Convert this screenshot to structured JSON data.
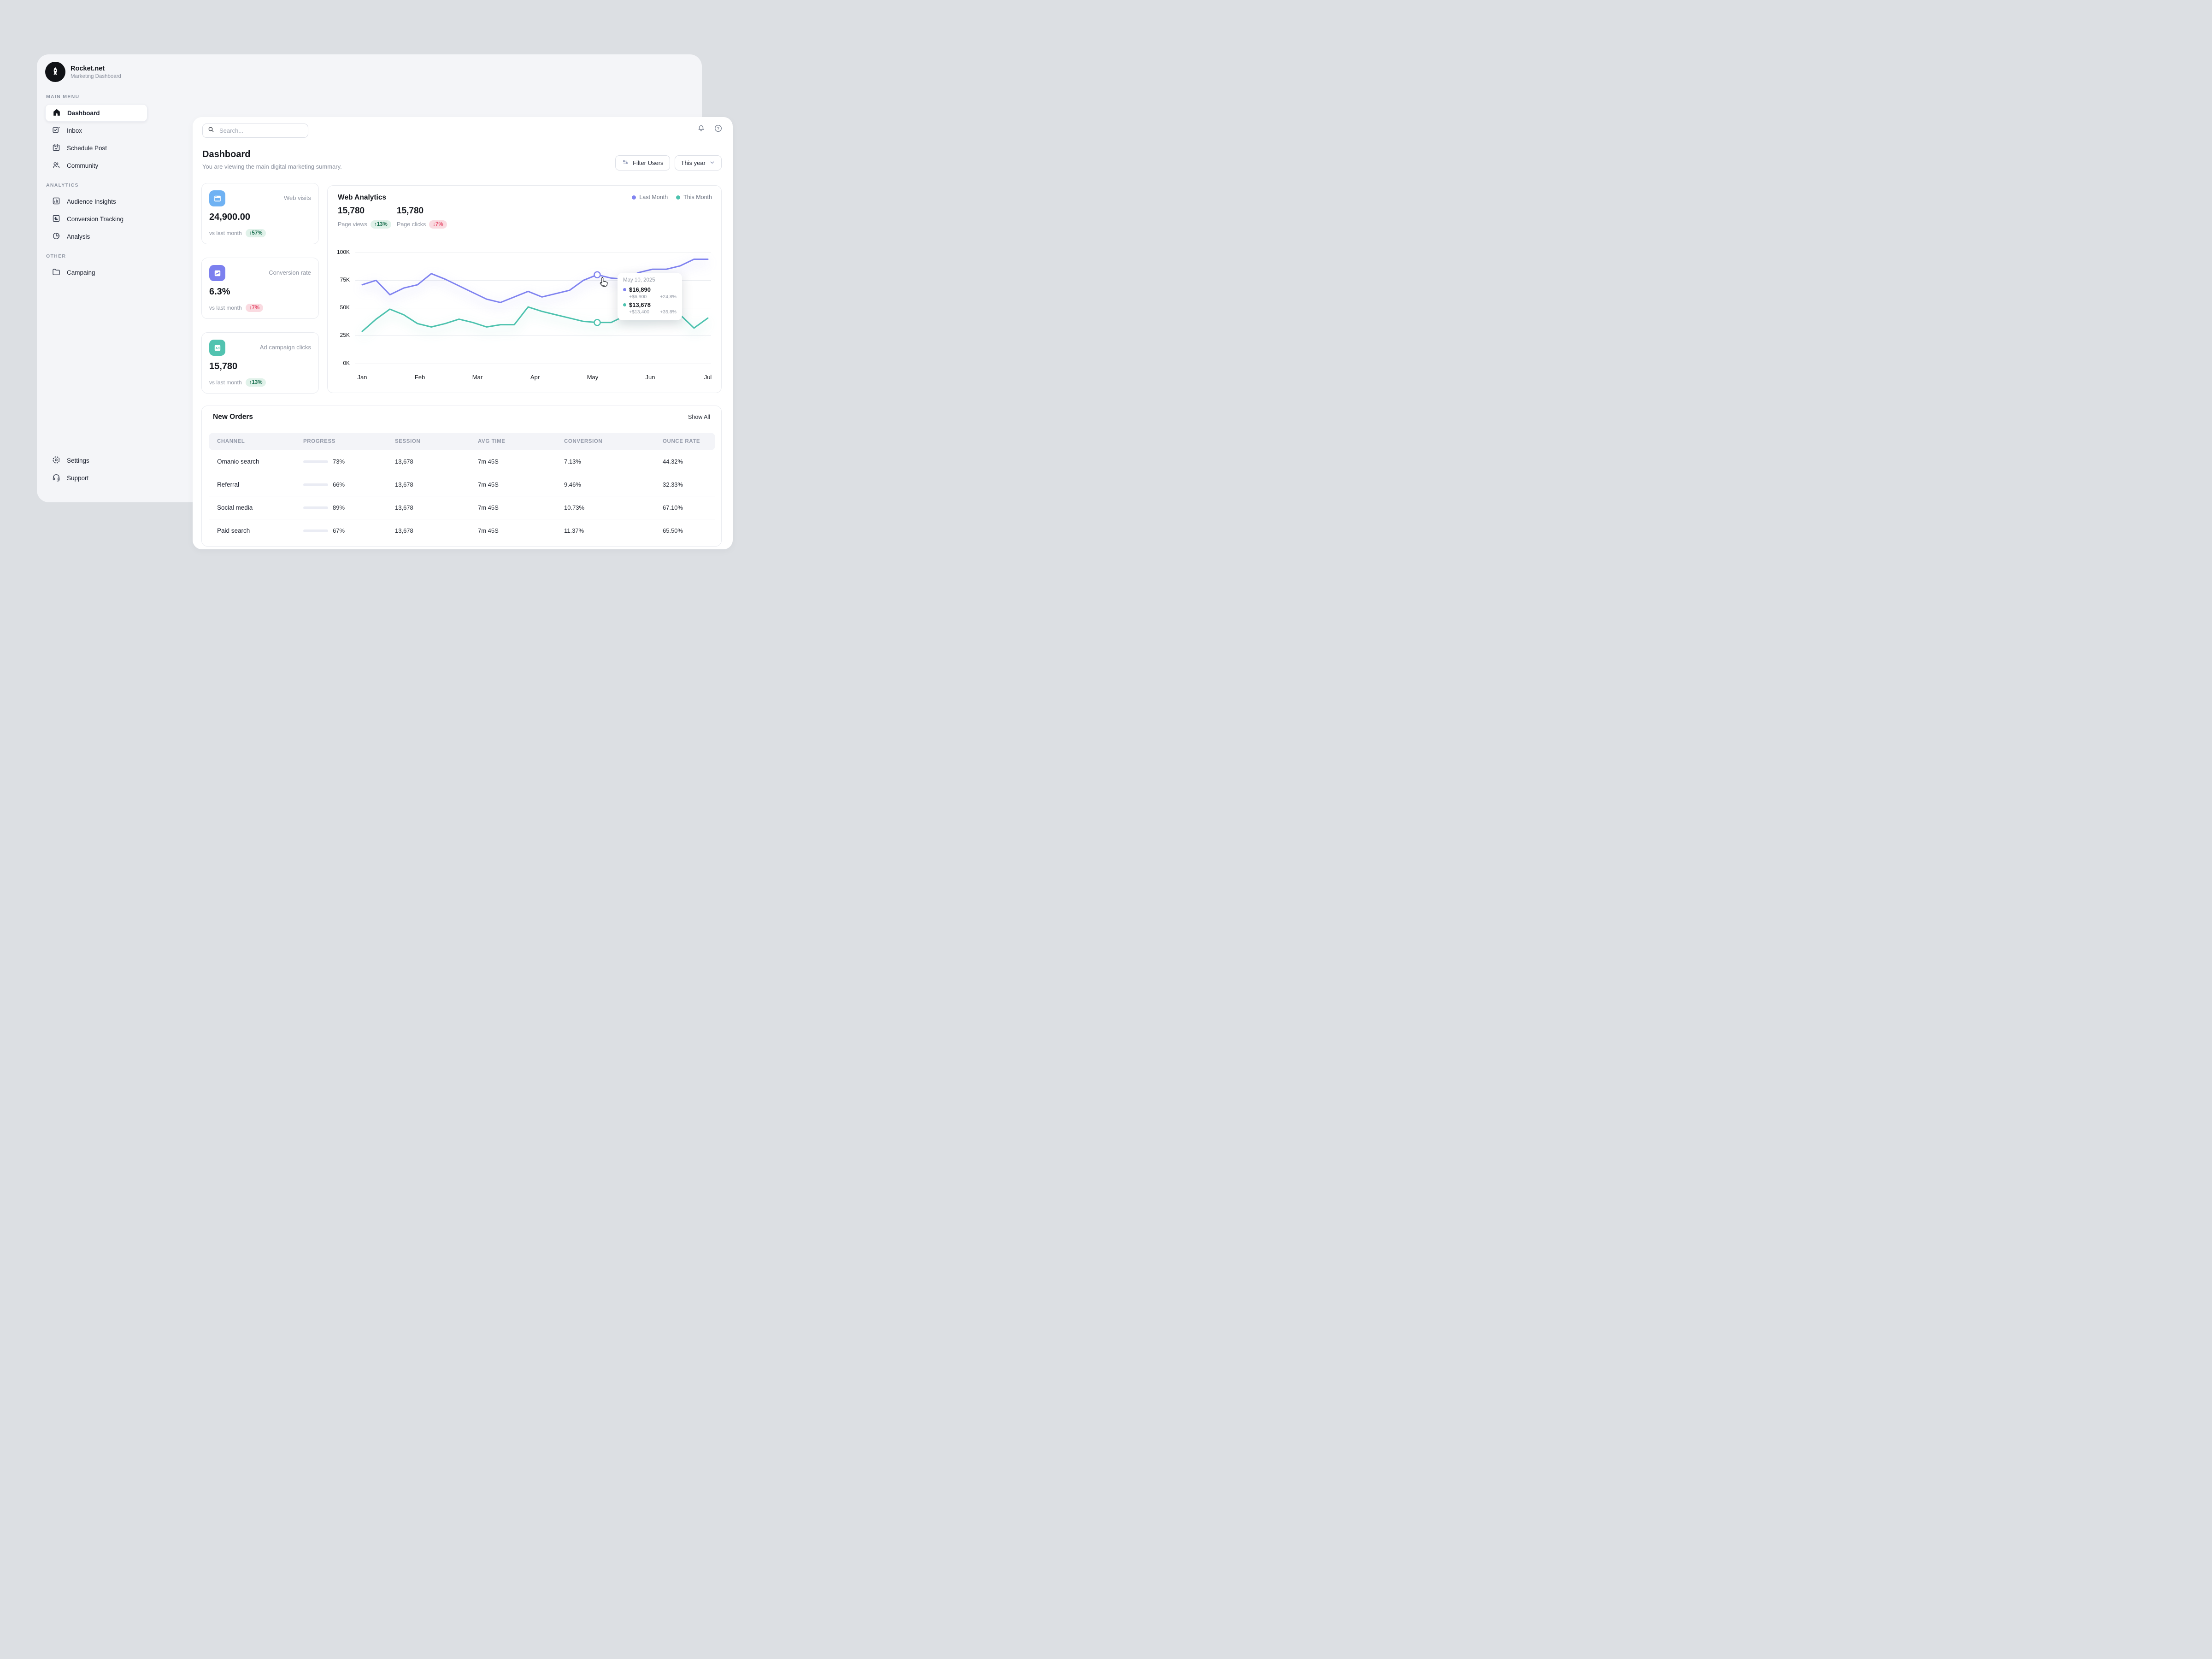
{
  "brand": {
    "name": "Rocket.net",
    "subtitle": "Marketing Dashboard"
  },
  "sidebar": {
    "sections": [
      {
        "label": "MAIN MENU",
        "items": [
          {
            "label": "Dashboard",
            "icon": "home-icon",
            "active": true
          },
          {
            "label": "Inbox",
            "icon": "inbox-icon"
          },
          {
            "label": "Schedule Post",
            "icon": "calendar-check-icon"
          },
          {
            "label": "Community",
            "icon": "community-icon"
          }
        ]
      },
      {
        "label": "ANALYTICS",
        "items": [
          {
            "label": "Audience Insights",
            "icon": "bar-chart-icon"
          },
          {
            "label": "Conversion Tracking",
            "icon": "pie-square-icon"
          },
          {
            "label": "Analysis",
            "icon": "pie-chart-icon"
          }
        ]
      },
      {
        "label": "OTHER",
        "items": [
          {
            "label": "Campaing",
            "icon": "folder-icon"
          }
        ]
      }
    ],
    "footer": [
      {
        "label": "Settings",
        "icon": "gear-icon"
      },
      {
        "label": "Support",
        "icon": "headphones-icon"
      }
    ]
  },
  "topbar": {
    "search_placeholder": "Search...",
    "help_glyph": "?"
  },
  "page": {
    "title": "Dashboard",
    "subtitle": "You are viewing the main digital marketing summary.",
    "filter_label": "Filter Users",
    "period_label": "This year"
  },
  "stat_cards": [
    {
      "label": "Web visits",
      "value": "24,900.00",
      "compare_label": "vs last month",
      "delta": "↑57%",
      "direction": "up",
      "icon": "browser-icon",
      "icon_bg": "#6FB2F3"
    },
    {
      "label": "Conversion rate",
      "value": "6.3%",
      "compare_label": "vs last month",
      "delta": "↓7%",
      "direction": "down",
      "icon": "trend-up-icon",
      "icon_bg": "#7C80EF"
    },
    {
      "label": "Ad campaign clicks",
      "value": "15,780",
      "compare_label": "vs last month",
      "delta": "↑13%",
      "direction": "up",
      "icon": "ad-icon",
      "icon_bg": "#52C3B0",
      "icon_text": "Ad"
    }
  ],
  "analytics": {
    "title": "Web Analytics",
    "stats": [
      {
        "value": "15,780",
        "label": "Page views",
        "delta": "↑13%",
        "direction": "up"
      },
      {
        "value": "15,780",
        "label": "Page clicks",
        "delta": "↓7%",
        "direction": "down"
      }
    ],
    "legend": [
      {
        "label": "Last Month",
        "color": "#8184F0"
      },
      {
        "label": "This Month",
        "color": "#4DC2AE"
      }
    ]
  },
  "chart_data": {
    "type": "line",
    "title": "Web Analytics",
    "x_axis_labels": [
      "Jan",
      "Feb",
      "Mar",
      "Apr",
      "May",
      "Jun",
      "Jul"
    ],
    "y_axis_labels": [
      "100K",
      "75K",
      "50K",
      "25K",
      "0K"
    ],
    "ylim": [
      0,
      100
    ],
    "unit": "K",
    "grid": "horizontal",
    "legend_position": "top-right",
    "series": [
      {
        "name": "Last Month",
        "color": "#8184F0",
        "values": [
          71,
          75,
          62,
          68,
          71,
          81,
          76,
          70,
          64,
          58,
          55,
          60,
          65,
          60,
          63,
          66,
          75,
          80,
          77,
          76,
          82,
          85,
          85,
          88,
          94,
          94
        ]
      },
      {
        "name": "This Month",
        "color": "#4DC2AE",
        "values": [
          29,
          40,
          49,
          44,
          36,
          33,
          36,
          40,
          37,
          33,
          35,
          35,
          51,
          47,
          44,
          41,
          38,
          37,
          37,
          43,
          40,
          43,
          46,
          44,
          32,
          41
        ]
      }
    ],
    "highlight_index": 17
  },
  "tooltip": {
    "date": "May 10, 2025",
    "rows": [
      {
        "value": "$16,890",
        "sub": "+$6,900",
        "pct": "+24,8%",
        "color": "#8184F0"
      },
      {
        "value": "$13,678",
        "sub": "+$13,400",
        "pct": "+35,8%",
        "color": "#4DC2AE"
      }
    ]
  },
  "orders": {
    "title": "New Orders",
    "show_all": "Show All",
    "columns": [
      "CHANNEL",
      "PROGRESS",
      "SESSION",
      "AVG TIME",
      "CONVERSION",
      "OUNCE RATE"
    ],
    "rows": [
      {
        "channel": "Omanio search",
        "progress_pct": 73,
        "progress_label": "73%",
        "progress_color": "#7B7FF0",
        "session": "13,678",
        "avg_time": "7m 45S",
        "conversion": "7.13%",
        "ounce_rate": "44.32%"
      },
      {
        "channel": "Referral",
        "progress_pct": 66,
        "progress_label": "66%",
        "progress_color": "#4DC2AE",
        "session": "13,678",
        "avg_time": "7m 45S",
        "conversion": "9.46%",
        "ounce_rate": "32.33%"
      },
      {
        "channel": "Social media",
        "progress_pct": 89,
        "progress_label": "89%",
        "progress_color": "#7B7FF0",
        "session": "13,678",
        "avg_time": "7m 45S",
        "conversion": "10.73%",
        "ounce_rate": "67.10%"
      },
      {
        "channel": "Paid search",
        "progress_pct": 67,
        "progress_label": "67%",
        "progress_color": "#7B7FF0",
        "session": "13,678",
        "avg_time": "7m 45S",
        "conversion": "11.37%",
        "ounce_rate": "65.50%"
      }
    ]
  }
}
